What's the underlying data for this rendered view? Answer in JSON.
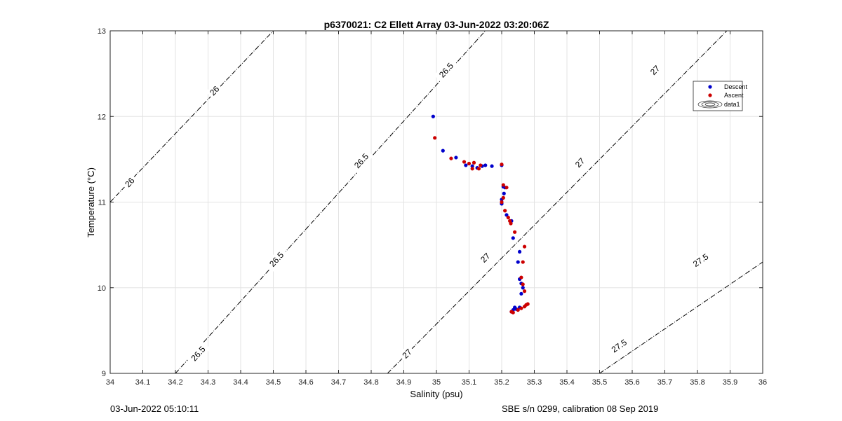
{
  "chart_data": {
    "type": "scatter",
    "title": "p6370021: C2 Ellett Array 03-Jun-2022 03:20:06Z",
    "xlabel": "Salinity (psu)",
    "ylabel": "Temperature (°C)",
    "xlim": [
      34,
      36
    ],
    "ylim": [
      9,
      13
    ],
    "xticks": [
      "34",
      "34.1",
      "34.2",
      "34.3",
      "34.4",
      "34.5",
      "34.6",
      "34.7",
      "34.8",
      "34.9",
      "35",
      "35.1",
      "35.2",
      "35.3",
      "35.4",
      "35.5",
      "35.6",
      "35.7",
      "35.8",
      "35.9",
      "36"
    ],
    "yticks": [
      "9",
      "10",
      "11",
      "12",
      "13"
    ],
    "grid": true,
    "legend_position": "right",
    "legend": [
      "Descent",
      "Ascent",
      "data1"
    ],
    "colors": {
      "descent": "#0000cc",
      "ascent": "#cc0000",
      "contour": "#000000",
      "grid": "#e3e3e3"
    },
    "contours": [
      {
        "level": 26,
        "label": "26",
        "points": [
          [
            34.0,
            11.0
          ],
          [
            34.5,
            13.0
          ]
        ],
        "labels_at": [
          [
            34.06,
            11.23
          ],
          [
            34.32,
            12.3
          ]
        ]
      },
      {
        "level": 26.5,
        "label": "26.5",
        "points": [
          [
            34.2,
            9.0
          ],
          [
            35.15,
            13.0
          ]
        ],
        "labels_at": [
          [
            34.27,
            9.23
          ],
          [
            34.51,
            10.33
          ],
          [
            34.77,
            11.48
          ],
          [
            35.03,
            12.54
          ]
        ]
      },
      {
        "level": 27,
        "label": "27",
        "points": [
          [
            34.85,
            9.0
          ],
          [
            35.89,
            13.0
          ]
        ],
        "labels_at": [
          [
            34.91,
            9.23
          ],
          [
            35.15,
            10.35
          ],
          [
            35.44,
            11.46
          ],
          [
            35.67,
            12.54
          ]
        ]
      },
      {
        "level": 27.5,
        "label": "27.5",
        "points": [
          [
            35.5,
            9.0
          ],
          [
            36.0,
            10.3
          ]
        ],
        "labels_at": [
          [
            35.56,
            9.32
          ],
          [
            35.81,
            10.32
          ]
        ]
      }
    ],
    "series": [
      {
        "name": "Descent",
        "points": [
          [
            34.99,
            12.0
          ],
          [
            35.02,
            11.6
          ],
          [
            35.06,
            11.52
          ],
          [
            35.09,
            11.43
          ],
          [
            35.11,
            11.42
          ],
          [
            35.125,
            11.4
          ],
          [
            35.14,
            11.42
          ],
          [
            35.15,
            11.43
          ],
          [
            35.17,
            11.42
          ],
          [
            35.2,
            11.43
          ],
          [
            35.205,
            11.18
          ],
          [
            35.21,
            11.17
          ],
          [
            35.207,
            11.1
          ],
          [
            35.2,
            11.03
          ],
          [
            35.2,
            10.98
          ],
          [
            35.215,
            10.85
          ],
          [
            35.23,
            10.78
          ],
          [
            35.235,
            10.58
          ],
          [
            35.25,
            10.3
          ],
          [
            35.255,
            10.42
          ],
          [
            35.255,
            10.1
          ],
          [
            35.26,
            10.05
          ],
          [
            35.265,
            10.0
          ],
          [
            35.26,
            9.93
          ],
          [
            35.24,
            9.77
          ],
          [
            35.235,
            9.74
          ],
          [
            35.23,
            9.72
          ],
          [
            35.245,
            9.75
          ],
          [
            35.255,
            9.77
          ]
        ]
      },
      {
        "name": "Ascent",
        "points": [
          [
            34.995,
            11.75
          ],
          [
            35.045,
            11.51
          ],
          [
            35.085,
            11.47
          ],
          [
            35.1,
            11.45
          ],
          [
            35.11,
            11.39
          ],
          [
            35.115,
            11.46
          ],
          [
            35.13,
            11.39
          ],
          [
            35.135,
            11.43
          ],
          [
            35.2,
            11.44
          ],
          [
            35.205,
            11.2
          ],
          [
            35.215,
            11.17
          ],
          [
            35.205,
            11.05
          ],
          [
            35.2,
            11.0
          ],
          [
            35.21,
            10.9
          ],
          [
            35.22,
            10.82
          ],
          [
            35.225,
            10.78
          ],
          [
            35.228,
            10.75
          ],
          [
            35.24,
            10.65
          ],
          [
            35.27,
            10.48
          ],
          [
            35.265,
            10.3
          ],
          [
            35.26,
            10.12
          ],
          [
            35.265,
            10.04
          ],
          [
            35.27,
            9.96
          ],
          [
            35.23,
            9.72
          ],
          [
            35.235,
            9.71
          ],
          [
            35.25,
            9.74
          ],
          [
            35.26,
            9.76
          ],
          [
            35.27,
            9.78
          ],
          [
            35.275,
            9.8
          ],
          [
            35.28,
            9.81
          ]
        ]
      }
    ]
  },
  "footer": {
    "left": "03-Jun-2022 05:10:11",
    "right": "SBE s/n 0299, calibration 08 Sep 2019"
  }
}
